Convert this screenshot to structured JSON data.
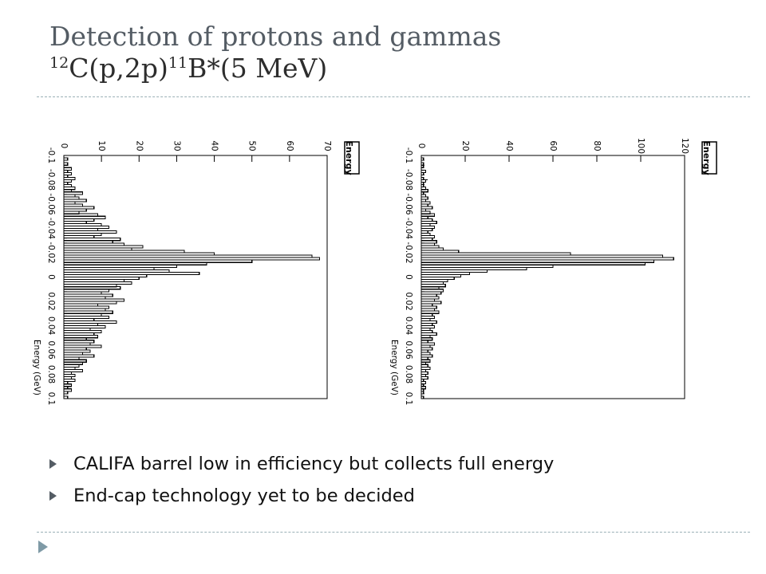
{
  "slide": {
    "title": "Detection of protons and gammas",
    "reaction": {
      "mass_c": "12",
      "target_and_particles": "C(p,2p)",
      "mass_b": "11",
      "product": "B*(5 MeV)"
    },
    "bullets": [
      "CALIFA barrel low in efficiency but collects full energy",
      "End-cap technology yet to be decided"
    ]
  },
  "colors": {
    "title": "#545c64",
    "rule": "#9ab0b6",
    "bullet": "#545c64",
    "plot_line": "#000000"
  },
  "chart_data": [
    {
      "type": "line",
      "histogram": true,
      "rotated": "90deg counter-clockwise",
      "legend_box": "Energy",
      "xlabel": "Energy (GeV)",
      "xlim": [
        -0.1,
        0.1
      ],
      "ylim": [
        0,
        70
      ],
      "x_ticks": [
        "-0.1",
        "-0.08",
        "-0.06",
        "-0.04",
        "-0.02",
        "0",
        "0.02",
        "0.04",
        "0.06",
        "0.08",
        "0.1"
      ],
      "y_ticks": [
        "0",
        "10",
        "20",
        "30",
        "40",
        "50",
        "60",
        "70"
      ],
      "grid": false,
      "bin_width": 0.002,
      "x": [
        -0.1,
        -0.098,
        -0.096,
        -0.094,
        -0.092,
        -0.09,
        -0.088,
        -0.086,
        -0.084,
        -0.082,
        -0.08,
        -0.078,
        -0.076,
        -0.074,
        -0.072,
        -0.07,
        -0.068,
        -0.066,
        -0.064,
        -0.062,
        -0.06,
        -0.058,
        -0.056,
        -0.054,
        -0.052,
        -0.05,
        -0.048,
        -0.046,
        -0.044,
        -0.042,
        -0.04,
        -0.038,
        -0.036,
        -0.034,
        -0.032,
        -0.03,
        -0.028,
        -0.026,
        -0.024,
        -0.022,
        -0.02,
        -0.018,
        -0.016,
        -0.014,
        -0.012,
        -0.01,
        -0.008,
        -0.006,
        -0.004,
        -0.002,
        0,
        0.002,
        0.004,
        0.006,
        0.008,
        0.01,
        0.012,
        0.014,
        0.016,
        0.018,
        0.02,
        0.022,
        0.024,
        0.026,
        0.028,
        0.03,
        0.032,
        0.034,
        0.036,
        0.038,
        0.04,
        0.042,
        0.044,
        0.046,
        0.048,
        0.05,
        0.052,
        0.054,
        0.056,
        0.058,
        0.06,
        0.062,
        0.064,
        0.066,
        0.068,
        0.07,
        0.072,
        0.074,
        0.076,
        0.078,
        0.08,
        0.082,
        0.084,
        0.086,
        0.088,
        0.09,
        0.092,
        0.094,
        0.096,
        0.098
      ],
      "values": [
        0,
        1,
        0,
        1,
        0,
        2,
        1,
        2,
        1,
        3,
        2,
        1,
        2,
        3,
        2,
        5,
        3,
        4,
        6,
        3,
        5,
        8,
        6,
        4,
        9,
        11,
        8,
        6,
        10,
        12,
        9,
        14,
        10,
        8,
        15,
        13,
        16,
        21,
        18,
        32,
        40,
        66,
        68,
        50,
        38,
        30,
        24,
        28,
        36,
        22,
        20,
        16,
        18,
        14,
        15,
        12,
        10,
        13,
        11,
        16,
        14,
        9,
        12,
        11,
        13,
        10,
        12,
        8,
        14,
        9,
        11,
        7,
        10,
        8,
        9,
        6,
        8,
        7,
        10,
        6,
        7,
        5,
        8,
        4,
        6,
        5,
        4,
        3,
        5,
        2,
        3,
        2,
        3,
        1,
        2,
        1,
        2,
        1,
        0,
        1
      ]
    },
    {
      "type": "line",
      "histogram": true,
      "rotated": "90deg counter-clockwise",
      "legend_box": "Energy",
      "xlabel": "Energy (GeV)",
      "xlim": [
        -0.1,
        0.1
      ],
      "ylim": [
        0,
        120
      ],
      "x_ticks": [
        "-0.1",
        "-0.08",
        "-0.06",
        "-0.04",
        "-0.02",
        "0",
        "0.02",
        "0.04",
        "0.06",
        "0.08",
        "0.1"
      ],
      "y_ticks": [
        "0",
        "20",
        "40",
        "60",
        "80",
        "100",
        "120"
      ],
      "grid": false,
      "bin_width": 0.002,
      "x": [
        -0.1,
        -0.098,
        -0.096,
        -0.094,
        -0.092,
        -0.09,
        -0.088,
        -0.086,
        -0.084,
        -0.082,
        -0.08,
        -0.078,
        -0.076,
        -0.074,
        -0.072,
        -0.07,
        -0.068,
        -0.066,
        -0.064,
        -0.062,
        -0.06,
        -0.058,
        -0.056,
        -0.054,
        -0.052,
        -0.05,
        -0.048,
        -0.046,
        -0.044,
        -0.042,
        -0.04,
        -0.038,
        -0.036,
        -0.034,
        -0.032,
        -0.03,
        -0.028,
        -0.026,
        -0.024,
        -0.022,
        -0.02,
        -0.018,
        -0.016,
        -0.014,
        -0.012,
        -0.01,
        -0.008,
        -0.006,
        -0.004,
        -0.002,
        0,
        0.002,
        0.004,
        0.006,
        0.008,
        0.01,
        0.012,
        0.014,
        0.016,
        0.018,
        0.02,
        0.022,
        0.024,
        0.026,
        0.028,
        0.03,
        0.032,
        0.034,
        0.036,
        0.038,
        0.04,
        0.042,
        0.044,
        0.046,
        0.048,
        0.05,
        0.052,
        0.054,
        0.056,
        0.058,
        0.06,
        0.062,
        0.064,
        0.066,
        0.068,
        0.07,
        0.072,
        0.074,
        0.076,
        0.078,
        0.08,
        0.082,
        0.084,
        0.086,
        0.088,
        0.09,
        0.092,
        0.094,
        0.096,
        0.098
      ],
      "values": [
        0,
        1,
        0,
        1,
        1,
        0,
        2,
        1,
        0,
        1,
        2,
        1,
        1,
        2,
        3,
        1,
        2,
        3,
        2,
        4,
        3,
        5,
        2,
        4,
        6,
        3,
        5,
        7,
        4,
        6,
        5,
        3,
        4,
        6,
        5,
        7,
        6,
        8,
        10,
        17,
        68,
        110,
        115,
        106,
        102,
        60,
        48,
        30,
        22,
        18,
        15,
        12,
        10,
        11,
        8,
        10,
        9,
        7,
        8,
        6,
        9,
        5,
        7,
        6,
        8,
        5,
        6,
        4,
        7,
        5,
        6,
        4,
        5,
        7,
        4,
        5,
        3,
        6,
        4,
        5,
        3,
        4,
        5,
        3,
        4,
        2,
        3,
        4,
        2,
        3,
        2,
        3,
        1,
        2,
        1,
        2,
        1,
        1,
        0,
        1
      ]
    }
  ]
}
